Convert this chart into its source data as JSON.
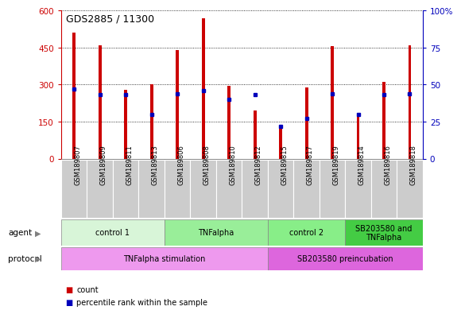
{
  "title": "GDS2885 / 11300",
  "samples": [
    "GSM189807",
    "GSM189809",
    "GSM189811",
    "GSM189813",
    "GSM189806",
    "GSM189808",
    "GSM189810",
    "GSM189812",
    "GSM189815",
    "GSM189817",
    "GSM189819",
    "GSM189814",
    "GSM189816",
    "GSM189818"
  ],
  "counts": [
    510,
    460,
    280,
    300,
    440,
    570,
    295,
    195,
    130,
    290,
    455,
    175,
    310,
    460
  ],
  "percentiles": [
    47,
    43,
    43,
    30,
    44,
    46,
    40,
    43,
    22,
    27,
    44,
    30,
    43,
    44
  ],
  "ylim_left": [
    0,
    600
  ],
  "ylim_right": [
    0,
    100
  ],
  "yticks_left": [
    0,
    150,
    300,
    450,
    600
  ],
  "yticks_right": [
    0,
    25,
    50,
    75,
    100
  ],
  "ytick_labels_right": [
    "0",
    "25",
    "50",
    "75",
    "100%"
  ],
  "bar_color": "#cc0000",
  "dot_color": "#0000bb",
  "agent_groups": [
    {
      "label": "control 1",
      "start": 0,
      "end": 4,
      "color": "#d8f5d8"
    },
    {
      "label": "TNFalpha",
      "start": 4,
      "end": 8,
      "color": "#99ee99"
    },
    {
      "label": "control 2",
      "start": 8,
      "end": 11,
      "color": "#88ee88"
    },
    {
      "label": "SB203580 and\nTNFalpha",
      "start": 11,
      "end": 14,
      "color": "#44cc44"
    }
  ],
  "protocol_groups": [
    {
      "label": "TNFalpha stimulation",
      "start": 0,
      "end": 8,
      "color": "#ee99ee"
    },
    {
      "label": "SB203580 preincubation",
      "start": 8,
      "end": 14,
      "color": "#dd66dd"
    }
  ],
  "legend_count_color": "#cc0000",
  "legend_pct_color": "#0000bb",
  "tick_bg_color": "#cccccc",
  "bar_width": 0.12
}
